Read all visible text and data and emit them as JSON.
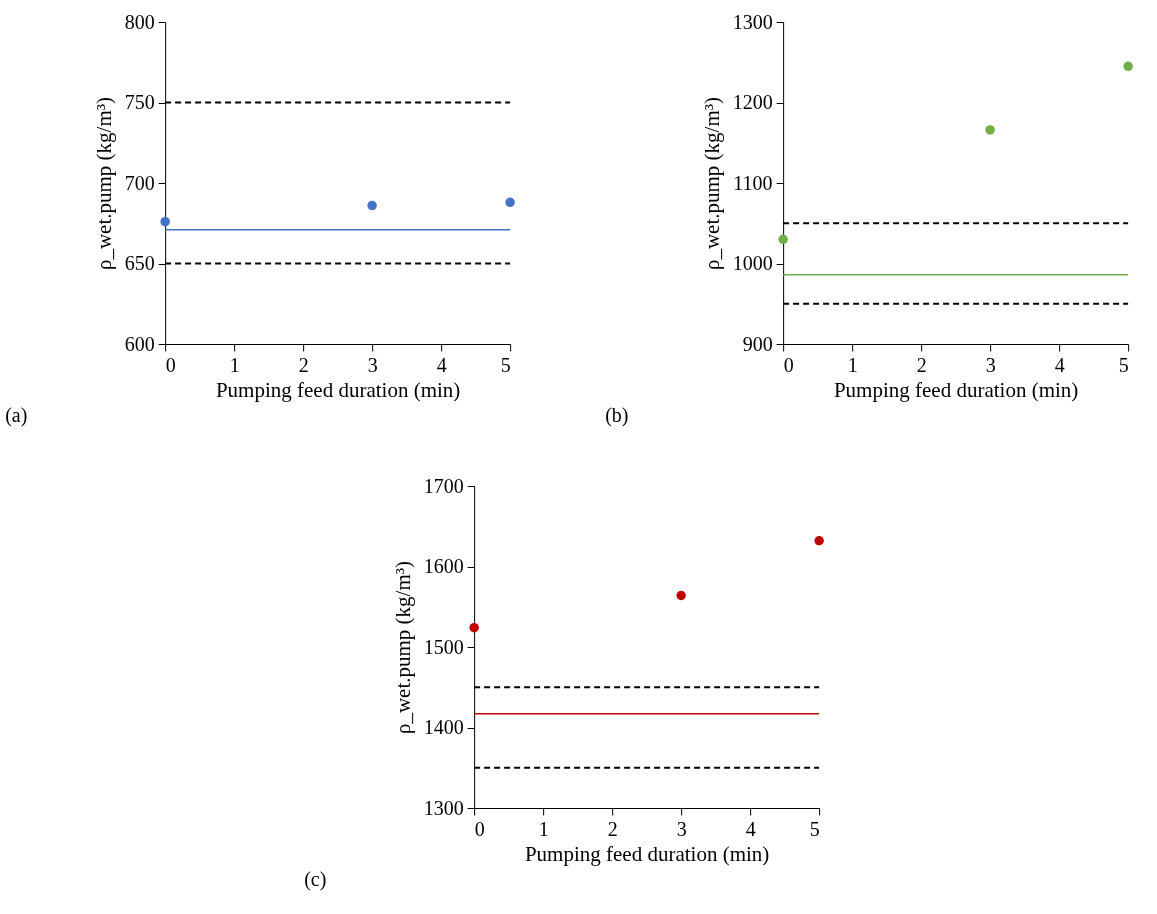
{
  "chart_data": [
    {
      "type": "scatter",
      "xlabel": "Pumping feed duration (min)",
      "ylabel": "ρ_wet.pump (kg/m³)",
      "annotations": [
        "(a)"
      ],
      "xlim": [
        0,
        5
      ],
      "xticks": [
        0,
        1,
        2,
        3,
        4,
        5
      ],
      "ylim": [
        600,
        800
      ],
      "yticks": [
        600,
        650,
        700,
        750,
        800
      ],
      "grid": false,
      "marker": "circle",
      "series": [
        {
          "color": "#4472c4",
          "x": [
            0,
            3,
            5
          ],
          "values": [
            676,
            686,
            688
          ]
        }
      ],
      "ref_lines": [
        {
          "axis": "y",
          "value": 750,
          "color": "#000000",
          "line_style": "dashed"
        },
        {
          "axis": "y",
          "value": 650,
          "color": "#000000",
          "line_style": "dashed"
        },
        {
          "axis": "y",
          "value": 671,
          "color": "#4472c4",
          "line_style": "solid"
        }
      ]
    },
    {
      "type": "scatter",
      "xlabel": "Pumping feed duration (min)",
      "ylabel": "ρ_wet.pump (kg/m³)",
      "annotations": [
        "(b)"
      ],
      "xlim": [
        0,
        5
      ],
      "xticks": [
        0,
        1,
        2,
        3,
        4,
        5
      ],
      "ylim": [
        900,
        1300
      ],
      "yticks": [
        900,
        1000,
        1100,
        1200,
        1300
      ],
      "grid": false,
      "marker": "circle",
      "series": [
        {
          "color": "#70ad47",
          "x": [
            0,
            3,
            5
          ],
          "values": [
            1030,
            1166,
            1245
          ]
        }
      ],
      "ref_lines": [
        {
          "axis": "y",
          "value": 1050,
          "color": "#000000",
          "line_style": "dashed"
        },
        {
          "axis": "y",
          "value": 950,
          "color": "#000000",
          "line_style": "dashed"
        },
        {
          "axis": "y",
          "value": 986,
          "color": "#70ad47",
          "line_style": "solid"
        }
      ]
    },
    {
      "type": "scatter",
      "xlabel": "Pumping feed duration (min)",
      "ylabel": "ρ_wet.pump (kg/m³)",
      "annotations": [
        "(c)"
      ],
      "xlim": [
        0,
        5
      ],
      "xticks": [
        0,
        1,
        2,
        3,
        4,
        5
      ],
      "ylim": [
        1300,
        1700
      ],
      "yticks": [
        1300,
        1400,
        1500,
        1600,
        1700
      ],
      "grid": false,
      "marker": "circle",
      "series": [
        {
          "color": "#c00000",
          "x": [
            0,
            3,
            5
          ],
          "values": [
            1524,
            1564,
            1632
          ]
        }
      ],
      "ref_lines": [
        {
          "axis": "y",
          "value": 1450,
          "color": "#000000",
          "line_style": "dashed"
        },
        {
          "axis": "y",
          "value": 1350,
          "color": "#000000",
          "line_style": "dashed"
        },
        {
          "axis": "y",
          "value": 1417,
          "color": "#c00000",
          "line_style": "solid"
        }
      ]
    }
  ]
}
